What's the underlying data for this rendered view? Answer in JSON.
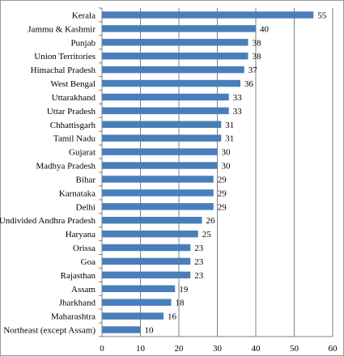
{
  "chart_data": {
    "type": "bar",
    "orientation": "horizontal",
    "title": "",
    "xlabel": "",
    "ylabel": "",
    "xlim": [
      0,
      60
    ],
    "xticks": [
      0,
      10,
      20,
      30,
      40,
      50,
      60
    ],
    "grid": "vertical",
    "bar_color": "#4a7ebb",
    "categories": [
      "Kerala",
      "Jammu & Kashmir",
      "Punjab",
      "Union Territories",
      "Himachal Pradesh",
      "West Bengal",
      "Uttarakhand",
      "Uttar Pradesh",
      "Chhattisgarh",
      "Tamil Nadu",
      "Gujarat",
      "Madhya Pradesh",
      "Bihar",
      "Karnataka",
      "Delhi",
      "Undivided Andhra Pradesh",
      "Haryana",
      "Orissa",
      "Goa",
      "Rajasthan",
      "Assam",
      "Jharkhand",
      "Maharashtra",
      "Northeast (except Assam)"
    ],
    "values": [
      55,
      40,
      38,
      38,
      37,
      36,
      33,
      33,
      31,
      31,
      30,
      30,
      29,
      29,
      29,
      26,
      25,
      23,
      23,
      23,
      19,
      18,
      16,
      10
    ]
  }
}
